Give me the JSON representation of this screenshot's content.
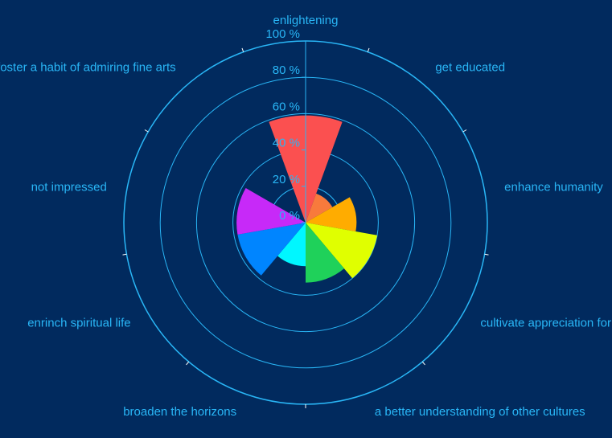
{
  "chart_data": {
    "type": "polar-bar",
    "title": "",
    "radial_axis": {
      "min": 0,
      "max": 100,
      "ticks": [
        {
          "value": 0,
          "label": "0 %"
        },
        {
          "value": 20,
          "label": "20 %"
        },
        {
          "value": 40,
          "label": "40 %"
        },
        {
          "value": 60,
          "label": "60 %"
        },
        {
          "value": 80,
          "label": "80 %"
        },
        {
          "value": 100,
          "label": "100 %"
        }
      ]
    },
    "categories": [
      "enlightening",
      "get educated",
      "enhance humanity",
      "cultivate appreciation for arts",
      "a better understanding of other cultures",
      "broaden the horizons",
      "enrinch spiritual life",
      "not impressed",
      "foster a habit of admiring fine arts"
    ],
    "values": [
      59,
      17,
      28,
      40,
      33,
      24,
      38,
      38,
      0
    ],
    "colors": [
      "#fb5050",
      "#f87a3c",
      "#ffac00",
      "#e0ff00",
      "#1fd15a",
      "#00f7ff",
      "#0085ff",
      "#c729f8",
      "#012a5e"
    ]
  },
  "colors": {
    "background": "#012a5e",
    "axis": "#29b6f6",
    "label": "#29b6f6"
  }
}
